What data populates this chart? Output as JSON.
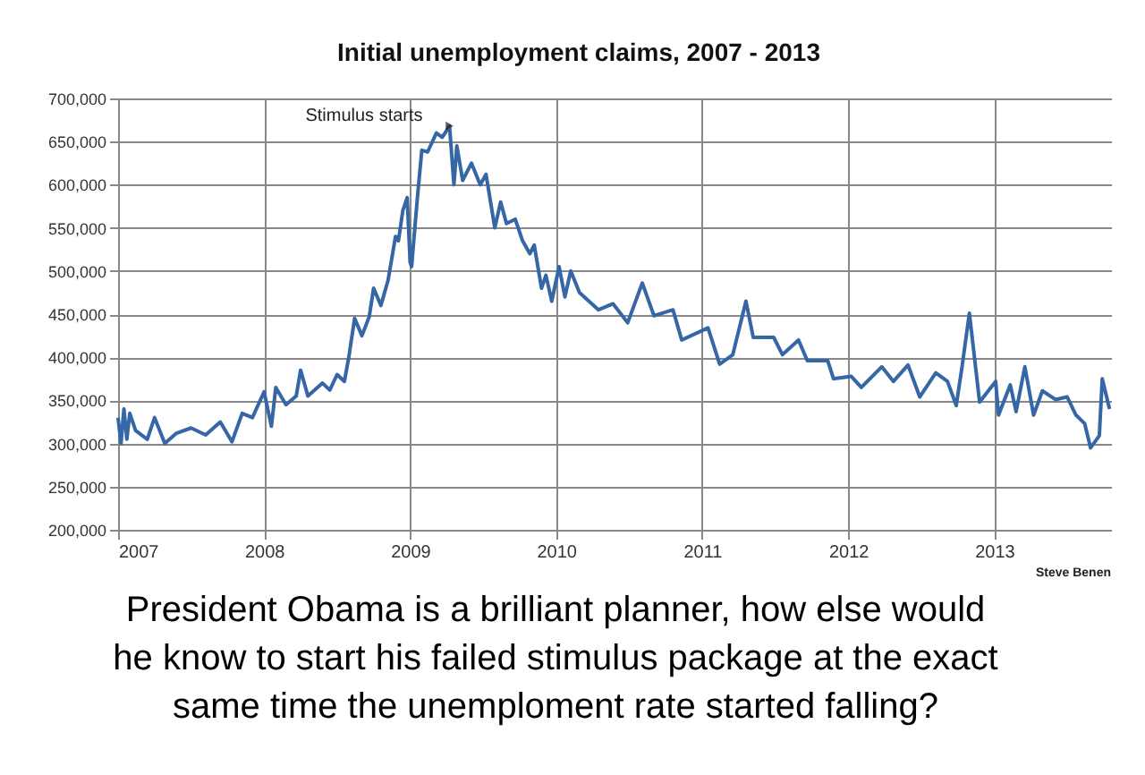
{
  "chart_data": {
    "type": "line",
    "title": "Initial unemployment claims, 2007 - 2013",
    "x": [
      2007.0,
      2007.02,
      2007.04,
      2007.06,
      2007.08,
      2007.12,
      2007.2,
      2007.25,
      2007.32,
      2007.4,
      2007.5,
      2007.6,
      2007.7,
      2007.78,
      2007.85,
      2007.92,
      2008.0,
      2008.05,
      2008.08,
      2008.15,
      2008.22,
      2008.25,
      2008.3,
      2008.4,
      2008.45,
      2008.5,
      2008.55,
      2008.58,
      2008.62,
      2008.67,
      2008.72,
      2008.75,
      2008.8,
      2008.85,
      2008.9,
      2008.92,
      2008.95,
      2008.98,
      2009.0,
      2009.01,
      2009.05,
      2009.08,
      2009.12,
      2009.18,
      2009.22,
      2009.27,
      2009.3,
      2009.32,
      2009.36,
      2009.42,
      2009.48,
      2009.52,
      2009.58,
      2009.62,
      2009.66,
      2009.72,
      2009.77,
      2009.82,
      2009.85,
      2009.9,
      2009.93,
      2009.97,
      2010.02,
      2010.06,
      2010.1,
      2010.16,
      2010.29,
      2010.39,
      2010.49,
      2010.59,
      2010.67,
      2010.8,
      2010.86,
      2011.04,
      2011.12,
      2011.21,
      2011.3,
      2011.35,
      2011.49,
      2011.55,
      2011.66,
      2011.72,
      2011.86,
      2011.9,
      2012.02,
      2012.09,
      2012.23,
      2012.31,
      2012.41,
      2012.49,
      2012.6,
      2012.68,
      2012.74,
      2012.78,
      2012.83,
      2012.9,
      2013.01,
      2013.03,
      2013.11,
      2013.15,
      2013.21,
      2013.27,
      2013.33,
      2013.42,
      2013.5,
      2013.56,
      2013.62,
      2013.66,
      2013.72,
      2013.74,
      2013.79
    ],
    "series": [
      {
        "color": "#3566a5",
        "values": [
          330000,
          300000,
          340000,
          305000,
          335000,
          315000,
          305000,
          330000,
          300000,
          312000,
          318000,
          310000,
          325000,
          302000,
          335000,
          330000,
          360000,
          320000,
          365000,
          345000,
          355000,
          385000,
          355000,
          370000,
          362000,
          380000,
          372000,
          400000,
          445000,
          425000,
          447000,
          480000,
          460000,
          490000,
          540000,
          535000,
          570000,
          585000,
          510000,
          505000,
          585000,
          640000,
          638000,
          660000,
          655000,
          668000,
          600000,
          645000,
          605000,
          625000,
          600000,
          612000,
          550000,
          580000,
          555000,
          560000,
          535000,
          520000,
          530000,
          480000,
          495000,
          465000,
          505000,
          470000,
          500000,
          475000,
          455000,
          462000,
          440000,
          486000,
          448000,
          455000,
          420000,
          434000,
          392000,
          403000,
          465000,
          423000,
          423000,
          403000,
          420000,
          396000,
          396000,
          375000,
          378000,
          365000,
          389000,
          372000,
          391000,
          354000,
          382000,
          372000,
          344000,
          389000,
          451000,
          348000,
          372000,
          333000,
          368000,
          337000,
          389000,
          333000,
          361000,
          351000,
          354000,
          333000,
          323000,
          295000,
          309000,
          375000,
          340000
        ]
      }
    ],
    "xlim": [
      2007,
      2013.8
    ],
    "xticks": [
      2007,
      2008,
      2009,
      2010,
      2011,
      2012,
      2013
    ],
    "ylim": [
      200000,
      700000
    ],
    "yticks": [
      {
        "value": 200000,
        "label": "200,000"
      },
      {
        "value": 250000,
        "label": "250,000"
      },
      {
        "value": 300000,
        "label": "300,000"
      },
      {
        "value": 350000,
        "label": "350,000"
      },
      {
        "value": 400000,
        "label": "400,000"
      },
      {
        "value": 450000,
        "label": "450,000"
      },
      {
        "value": 500000,
        "label": "500,000"
      },
      {
        "value": 550000,
        "label": "550,000"
      },
      {
        "value": 600000,
        "label": "600,000"
      },
      {
        "value": 650000,
        "label": "650,000"
      },
      {
        "value": 700000,
        "label": "700,000"
      }
    ],
    "grid": true,
    "marker": "none",
    "line_style": "solid",
    "annotations": [
      {
        "text": "Stimulus starts",
        "x": 2009.27,
        "y": 668000
      },
      "Steve Benen",
      "President Obama is a brilliant planner, how else would\nhe know to start his failed stimulus package at the exact\nsame time the unemploment rate started falling?"
    ]
  }
}
